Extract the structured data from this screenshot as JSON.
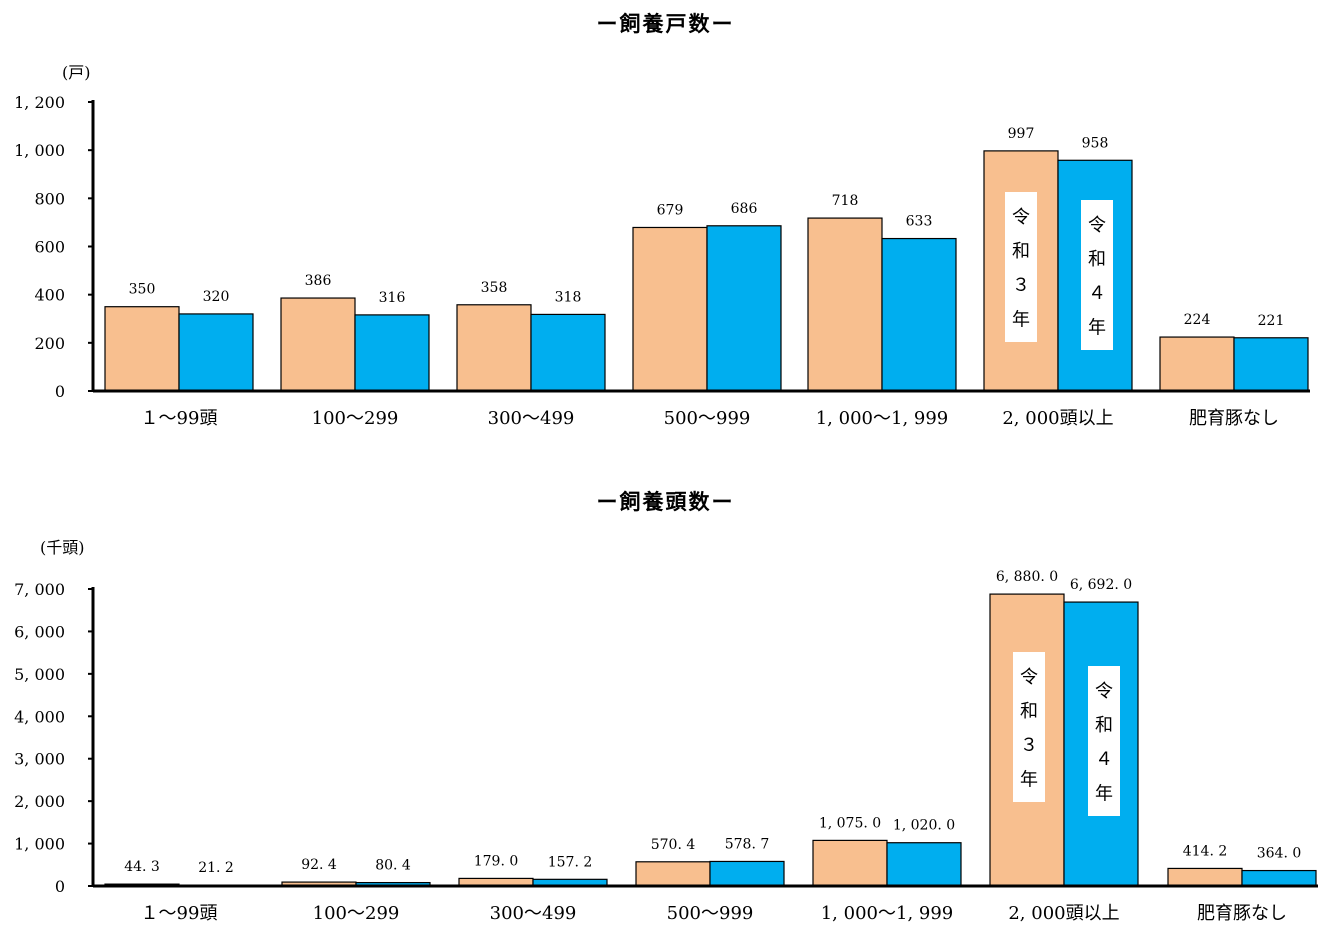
{
  "colors": {
    "r3": "#F8BF8F",
    "r4": "#00AEEF",
    "axis": "#000000"
  },
  "chart_data": [
    {
      "type": "bar",
      "title": "ー飼養戸数ー",
      "unit": "(戸)",
      "ylim": [
        0,
        1200
      ],
      "yticks": [
        "0",
        "200",
        "400",
        "600",
        "800",
        "1, 000",
        "1, 200"
      ],
      "categories": [
        "１～99頭",
        "100～299",
        "300～499",
        "500～999",
        "1, 000～1, 999",
        "2, 000頭以上",
        "肥育豚なし"
      ],
      "series": [
        {
          "name": "令和３年",
          "values": [
            350,
            386,
            358,
            679,
            718,
            997,
            224
          ],
          "labels": [
            "350",
            "386",
            "358",
            "679",
            "718",
            "997",
            "224"
          ]
        },
        {
          "name": "令和４年",
          "values": [
            320,
            316,
            318,
            686,
            633,
            958,
            221
          ],
          "labels": [
            "320",
            "316",
            "318",
            "686",
            "633",
            "958",
            "221"
          ]
        }
      ]
    },
    {
      "type": "bar",
      "title": "ー飼養頭数ー",
      "unit": "(千頭)",
      "ylim": [
        0,
        7000
      ],
      "yticks": [
        "0",
        "1, 000",
        "2, 000",
        "3, 000",
        "4, 000",
        "5, 000",
        "6, 000",
        "7, 000"
      ],
      "categories": [
        "１～99頭",
        "100～299",
        "300～499",
        "500～999",
        "1, 000～1, 999",
        "2, 000頭以上",
        "肥育豚なし"
      ],
      "series": [
        {
          "name": "令和３年",
          "values": [
            44.3,
            92.4,
            179.0,
            570.4,
            1075.0,
            6880.0,
            414.2
          ],
          "labels": [
            "44. 3",
            "92. 4",
            "179. 0",
            "570. 4",
            "1, 075. 0",
            "6, 880. 0",
            "414. 2"
          ]
        },
        {
          "name": "令和４年",
          "values": [
            21.2,
            80.4,
            157.2,
            578.7,
            1020.0,
            6692.0,
            364.0
          ],
          "labels": [
            "21. 2",
            "80. 4",
            "157. 2",
            "578. 7",
            "1, 020. 0",
            "6, 692. 0",
            "364. 0"
          ]
        }
      ]
    }
  ]
}
